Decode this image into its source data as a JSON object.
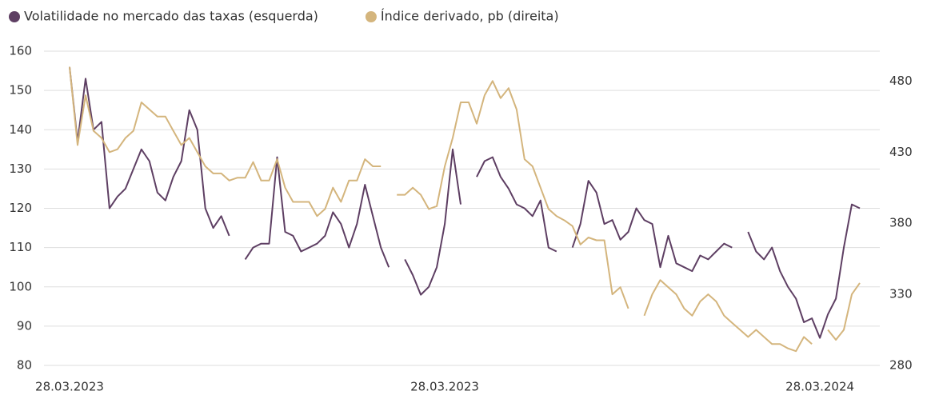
{
  "chart_data": {
    "type": "line",
    "legend": "top-left",
    "categories": [
      "28.03.2023",
      null,
      null,
      null,
      null,
      null,
      null,
      null,
      null,
      null,
      null,
      null,
      null,
      null,
      null,
      null,
      null,
      null,
      null,
      null,
      null,
      null,
      null,
      null,
      null,
      null,
      null,
      null,
      null,
      null,
      null,
      null,
      null,
      null,
      null,
      null,
      null,
      null,
      null,
      null,
      null,
      null,
      null,
      null,
      null,
      null,
      null,
      "28.03.2023",
      null,
      null,
      null,
      null,
      null,
      null,
      null,
      null,
      null,
      null,
      null,
      null,
      null,
      null,
      null,
      null,
      null,
      null,
      null,
      null,
      null,
      null,
      null,
      null,
      null,
      null,
      null,
      null,
      null,
      null,
      null,
      null,
      null,
      null,
      null,
      null,
      null,
      null,
      null,
      null,
      null,
      null,
      null,
      null,
      null,
      null,
      "28.03.2024",
      null,
      null,
      null,
      null,
      null
    ],
    "ylim": [
      80,
      160
    ],
    "yticks": [
      80,
      90,
      100,
      110,
      120,
      130,
      140,
      150,
      160
    ],
    "y2lim": [
      280,
      501
    ],
    "y2ticks": [
      280,
      330,
      380,
      430,
      480
    ],
    "grid": true,
    "series": [
      {
        "name": "Volatilidade no mercado das taxas (esquerda)",
        "color": "#5e3f63",
        "values": [
          156,
          137,
          153,
          140,
          142,
          120,
          123,
          125,
          130,
          135,
          132,
          124,
          122,
          128,
          132,
          145,
          140,
          120,
          115,
          118,
          113,
          null,
          107,
          110,
          111,
          111,
          133,
          114,
          113,
          109,
          110,
          111,
          113,
          119,
          116,
          110,
          116,
          126,
          118,
          110,
          105,
          null,
          107,
          103,
          98,
          100,
          105,
          116,
          135,
          121,
          null,
          128,
          132,
          133,
          128,
          125,
          121,
          120,
          118,
          122,
          110,
          109,
          null,
          110,
          116,
          127,
          124,
          116,
          117,
          112,
          114,
          120,
          117,
          116,
          105,
          113,
          106,
          105,
          104,
          108,
          107,
          109,
          111,
          110,
          null,
          114,
          109,
          107,
          110,
          104,
          100,
          97,
          91,
          92,
          87,
          93,
          97,
          110,
          121,
          120
        ]
      },
      {
        "name": "Índice derivado, pb (direita)",
        "color": "#d4b57d",
        "axis": "y2",
        "values": [
          490,
          435,
          470,
          445,
          440,
          430,
          432,
          440,
          445,
          465,
          460,
          455,
          455,
          445,
          435,
          440,
          430,
          420,
          415,
          415,
          410,
          412,
          412,
          423,
          410,
          410,
          425,
          405,
          395,
          395,
          395,
          385,
          390,
          405,
          395,
          410,
          410,
          425,
          420,
          420,
          null,
          400,
          400,
          405,
          400,
          390,
          392,
          420,
          440,
          465,
          465,
          450,
          470,
          480,
          468,
          475,
          460,
          425,
          420,
          405,
          390,
          385,
          382,
          378,
          365,
          370,
          368,
          368,
          330,
          335,
          320,
          null,
          315,
          330,
          340,
          335,
          330,
          320,
          315,
          325,
          330,
          325,
          315,
          310,
          305,
          300,
          305,
          300,
          295,
          295,
          292,
          290,
          300,
          295,
          null,
          305,
          298,
          305,
          330,
          338
        ]
      }
    ]
  }
}
